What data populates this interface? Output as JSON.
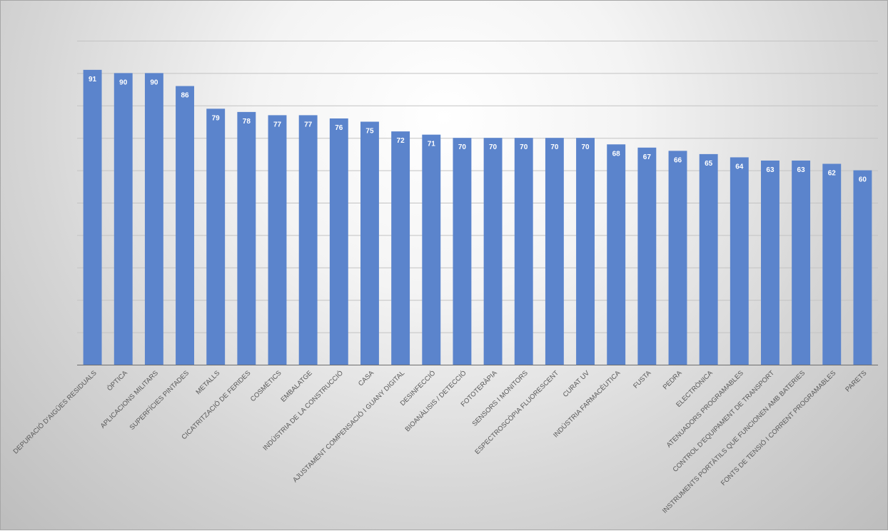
{
  "chart_data": {
    "type": "bar",
    "categories": [
      "DEPURACIÓ D'AIGÜES RESIDUALS",
      "ÒPTICA",
      "APLICACIONS MILITARS",
      "SUPERFÍCIES PINTADES",
      "METALLS",
      "CICATRITZACIÓ DE FERIDES",
      "COSMÈTICS",
      "EMBALATGE",
      "INDÚSTRIA DE LA CONSTRUCCIÓ",
      "CASA",
      "AJUSTAMENT COMPENSACIÓ I GUANY DIGITAL",
      "DESINFECCIÓ",
      "BIOANÀLISIS / DETECCIÓ",
      "FOTOTERÀPIA",
      "SENSORS I MONITORS",
      "ESPECTROSCÒPIA FLUORESCENT",
      "CURAT UV",
      "INDÚSTRIA FARMACÈUTICA",
      "FUSTA",
      "PEDRA",
      "ELECTRÒNICA",
      "ATENUADORS PROGRAMABLES",
      "CONTROL D'EQUIPAMENT DE TRANSPORT",
      "INSTRUMENTS PORTÀTILS QUE FUNCIONEN AMB BATERIES",
      "FONTS DE TENSIÓ I CORRENT PROGRAMABLES",
      "PARETS"
    ],
    "values": [
      91,
      90,
      90,
      86,
      79,
      78,
      77,
      77,
      76,
      75,
      72,
      71,
      70,
      70,
      70,
      70,
      70,
      68,
      67,
      66,
      65,
      64,
      63,
      63,
      62,
      60
    ],
    "data_labels": true,
    "ylim": [
      0,
      100
    ],
    "gridlines": [
      0,
      10,
      20,
      30,
      40,
      50,
      60,
      70,
      80,
      90,
      100
    ],
    "grid": true,
    "y_tick_labels_visible": false,
    "legend": "none",
    "bar_color": "#5b84cc",
    "label_color": "#ffffff"
  }
}
